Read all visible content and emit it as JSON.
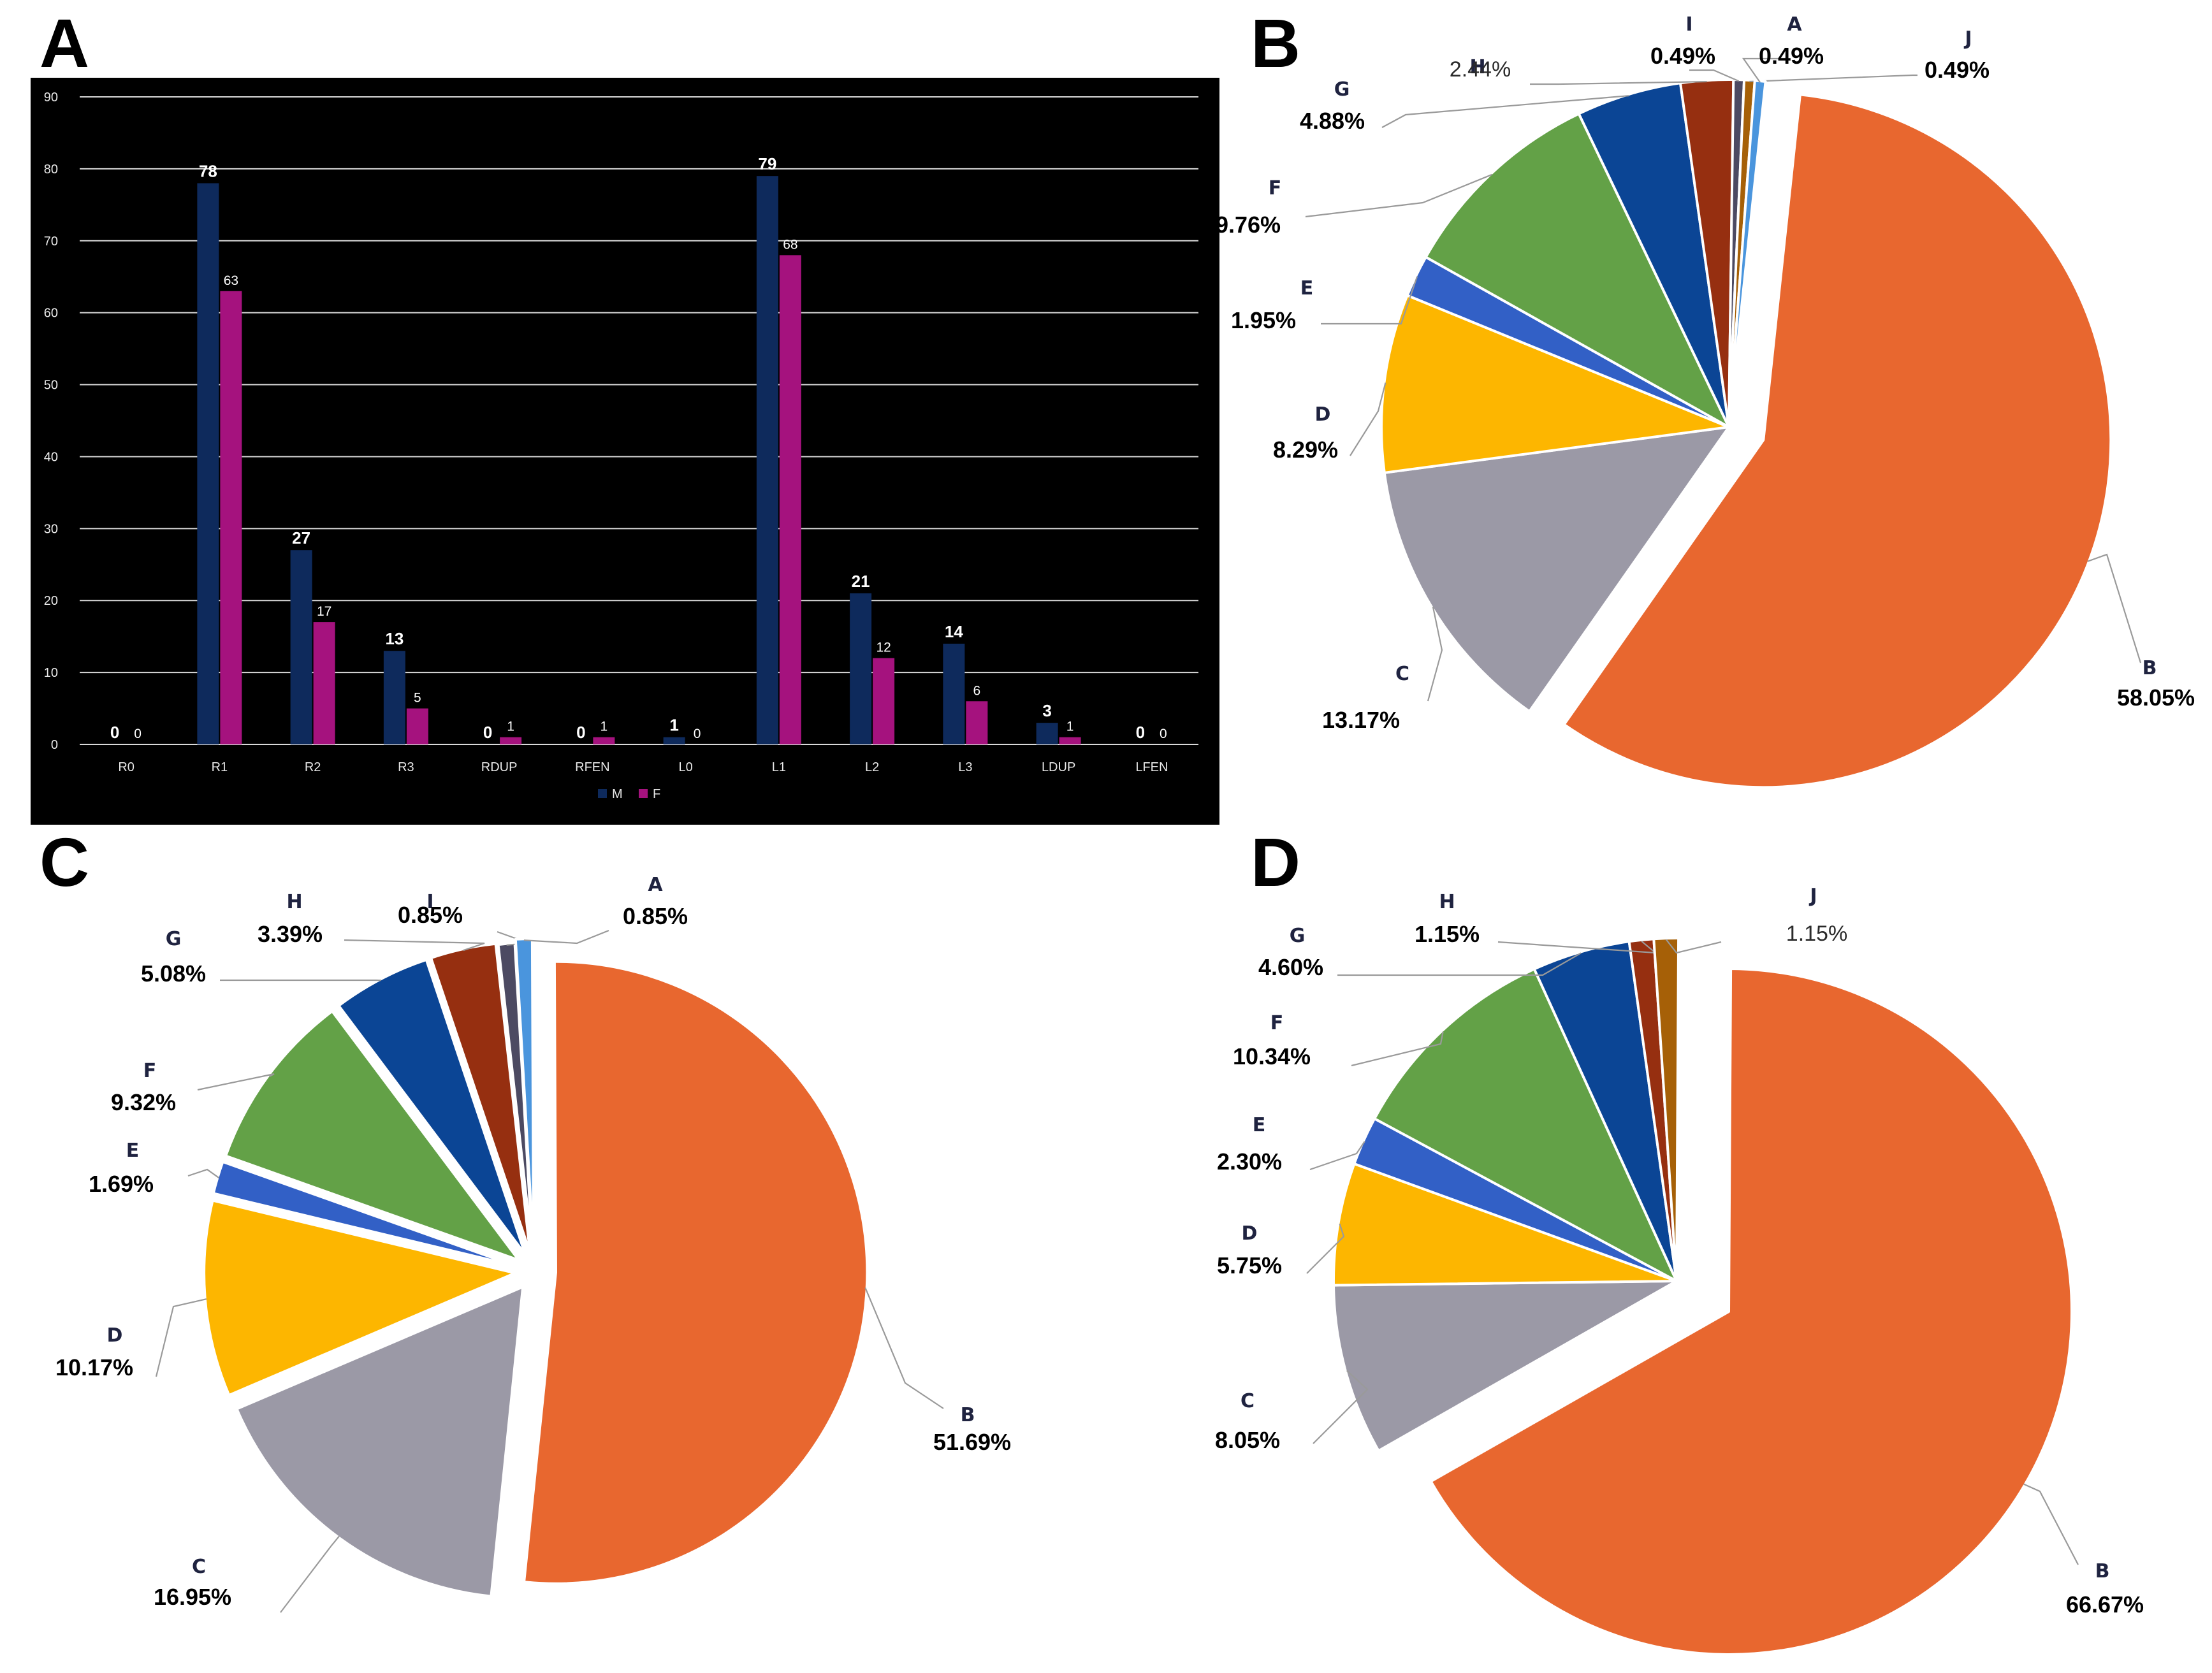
{
  "panels": {
    "a": "A",
    "b": "B",
    "c": "C",
    "d": "D"
  },
  "chart_data": [
    {
      "panel": "A",
      "type": "bar",
      "categories": [
        "R0",
        "R1",
        "R2",
        "R3",
        "RDUP",
        "RFEN",
        "L0",
        "L1",
        "L2",
        "L3",
        "LDUP",
        "LFEN"
      ],
      "series": [
        {
          "name": "M",
          "values": [
            0,
            78,
            27,
            13,
            0,
            0,
            1,
            79,
            21,
            14,
            3,
            0
          ],
          "color": "#0e2a5c"
        },
        {
          "name": "F",
          "values": [
            0,
            63,
            17,
            5,
            1,
            1,
            0,
            68,
            12,
            6,
            1,
            0
          ],
          "color": "#a5127e"
        }
      ],
      "yticks": [
        0,
        10,
        20,
        30,
        40,
        50,
        60,
        70,
        80,
        90
      ],
      "ylim": [
        0,
        90
      ],
      "grid": true,
      "legend": "bottom-center",
      "background": "#000000",
      "gridline_color": "#d9d9d9"
    },
    {
      "panel": "B",
      "type": "pie",
      "slices": [
        {
          "label": "B",
          "value": 58.05,
          "text": "58.05%",
          "color": "#e8672f",
          "exploded": true
        },
        {
          "label": "C",
          "value": 13.17,
          "text": "13.17%",
          "color": "#9b99a6"
        },
        {
          "label": "D",
          "value": 8.29,
          "text": "8.29%",
          "color": "#fdb600"
        },
        {
          "label": "E",
          "value": 1.95,
          "text": "1.95%",
          "color": "#3260c6"
        },
        {
          "label": "F",
          "value": 9.76,
          "text": "9.76%",
          "color": "#63a147"
        },
        {
          "label": "G",
          "value": 4.88,
          "text": "4.88%",
          "color": "#0b4595"
        },
        {
          "label": "H",
          "value": 2.44,
          "text": "2.44%",
          "color": "#962f10"
        },
        {
          "label": "I",
          "value": 0.49,
          "text": "0.49%",
          "color": "#4c4a62"
        },
        {
          "label": "J",
          "value": 0.49,
          "text": "0.49%",
          "color": "#a66007"
        },
        {
          "label": "A",
          "value": 0.49,
          "text": "0.49%",
          "color": "#4a95dd"
        }
      ]
    },
    {
      "panel": "C",
      "type": "pie",
      "slices": [
        {
          "label": "B",
          "value": 51.69,
          "text": "51.69%",
          "color": "#e8672f"
        },
        {
          "label": "C",
          "value": 16.95,
          "text": "16.95%",
          "color": "#9b99a6"
        },
        {
          "label": "D",
          "value": 10.17,
          "text": "10.17%",
          "color": "#fdb600"
        },
        {
          "label": "E",
          "value": 1.69,
          "text": "1.69%",
          "color": "#3260c6"
        },
        {
          "label": "F",
          "value": 9.32,
          "text": "9.32%",
          "color": "#63a147"
        },
        {
          "label": "G",
          "value": 5.08,
          "text": "5.08%",
          "color": "#0b4595"
        },
        {
          "label": "H",
          "value": 3.39,
          "text": "3.39%",
          "color": "#962f10"
        },
        {
          "label": "I",
          "value": 0.85,
          "text": "0.85%",
          "color": "#4c4a62"
        },
        {
          "label": "A",
          "value": 0.85,
          "text": "0.85%",
          "color": "#4a95dd"
        }
      ]
    },
    {
      "panel": "D",
      "type": "pie",
      "slices": [
        {
          "label": "B",
          "value": 66.67,
          "text": "66.67%",
          "color": "#e8672f",
          "exploded": true
        },
        {
          "label": "C",
          "value": 8.05,
          "text": "8.05%",
          "color": "#9b99a6"
        },
        {
          "label": "D",
          "value": 5.75,
          "text": "5.75%",
          "color": "#fdb600"
        },
        {
          "label": "E",
          "value": 2.3,
          "text": "2.30%",
          "color": "#3260c6"
        },
        {
          "label": "F",
          "value": 10.34,
          "text": "10.34%",
          "color": "#63a147"
        },
        {
          "label": "G",
          "value": 4.6,
          "text": "4.60%",
          "color": "#0b4595"
        },
        {
          "label": "H",
          "value": 1.15,
          "text": "1.15%",
          "color": "#962f10"
        },
        {
          "label": "J",
          "value": 1.15,
          "text": "1.15%",
          "color": "#a66007"
        }
      ]
    }
  ]
}
